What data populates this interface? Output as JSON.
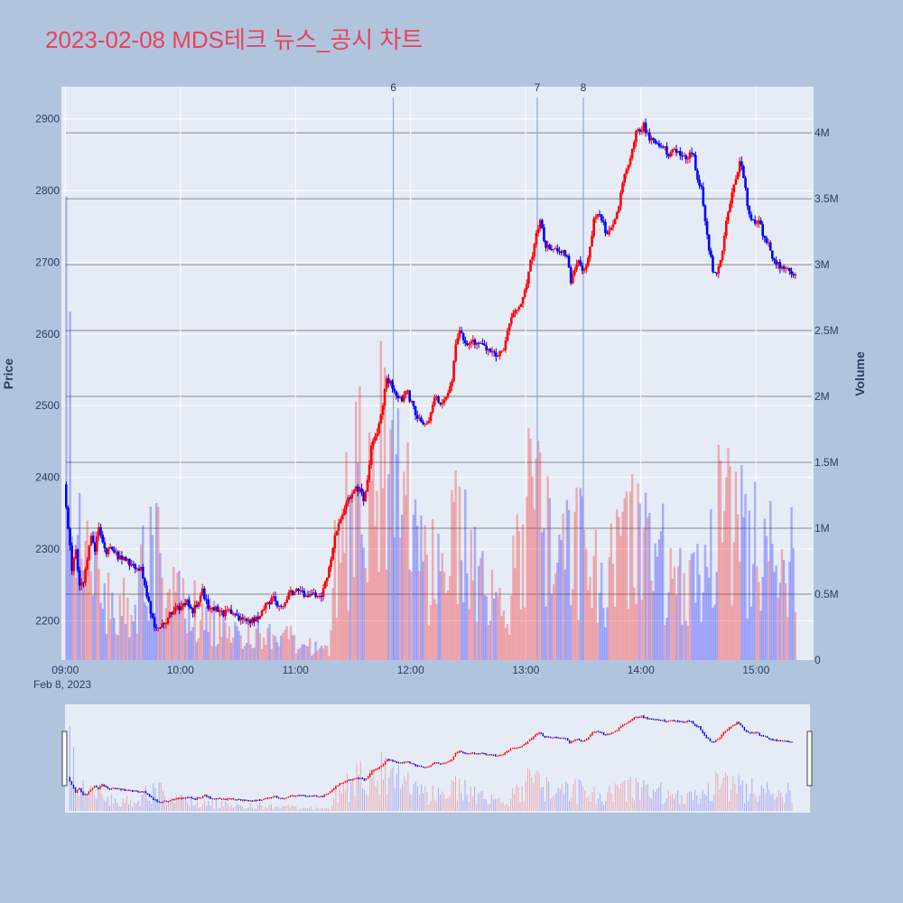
{
  "title": "2023-02-08 MDS테크 뉴스_공시 차트",
  "colors": {
    "up": "#ff0000",
    "down": "#0000ff",
    "background": "#b0c4de",
    "plot_bg": "#e5ecf6",
    "title": "#e8435a"
  },
  "chart_data": {
    "type": "candlestick",
    "title": "2023-02-08 MDS테크 뉴스_공시 차트",
    "xlabel": "",
    "ylabel": "Price",
    "y2label": "Volume",
    "date_label": "Feb 8, 2023",
    "x_ticks": [
      "09:00",
      "10:00",
      "11:00",
      "12:00",
      "13:00",
      "14:00",
      "15:00"
    ],
    "y_ticks": [
      2200,
      2300,
      2400,
      2500,
      2600,
      2700,
      2800,
      2900
    ],
    "y2_ticks": [
      {
        "value": 0,
        "label": "0"
      },
      {
        "value": 500000,
        "label": "0.5M"
      },
      {
        "value": 1000000,
        "label": "1M"
      },
      {
        "value": 1500000,
        "label": "1.5M"
      },
      {
        "value": 2000000,
        "label": "2M"
      },
      {
        "value": 2500000,
        "label": "2.5M"
      },
      {
        "value": 3000000,
        "label": "3M"
      },
      {
        "value": 3500000,
        "label": "3.5M"
      },
      {
        "value": 4000000,
        "label": "4M"
      }
    ],
    "ylim": [
      2145,
      2945
    ],
    "y2lim": [
      0,
      4350000
    ],
    "x_range": [
      "08:58",
      "15:30"
    ],
    "news_markers": [
      {
        "label": "6",
        "time": "11:51"
      },
      {
        "label": "7",
        "time": "13:06"
      },
      {
        "label": "8",
        "time": "13:30"
      }
    ],
    "price_path": [
      [
        "09:00",
        2390
      ],
      [
        "09:02",
        2330
      ],
      [
        "09:04",
        2270
      ],
      [
        "09:06",
        2295
      ],
      [
        "09:08",
        2250
      ],
      [
        "09:10",
        2255
      ],
      [
        "09:12",
        2290
      ],
      [
        "09:14",
        2320
      ],
      [
        "09:16",
        2300
      ],
      [
        "09:18",
        2330
      ],
      [
        "09:20",
        2310
      ],
      [
        "09:22",
        2295
      ],
      [
        "09:25",
        2300
      ],
      [
        "09:28",
        2290
      ],
      [
        "09:31",
        2290
      ],
      [
        "09:34",
        2280
      ],
      [
        "09:37",
        2275
      ],
      [
        "09:40",
        2270
      ],
      [
        "09:42",
        2250
      ],
      [
        "09:44",
        2225
      ],
      [
        "09:46",
        2200
      ],
      [
        "09:48",
        2190
      ],
      [
        "09:50",
        2195
      ],
      [
        "09:53",
        2200
      ],
      [
        "09:55",
        2210
      ],
      [
        "09:58",
        2215
      ],
      [
        "10:01",
        2220
      ],
      [
        "10:04",
        2225
      ],
      [
        "10:07",
        2215
      ],
      [
        "10:09",
        2220
      ],
      [
        "10:11",
        2240
      ],
      [
        "10:12",
        2245
      ],
      [
        "10:14",
        2225
      ],
      [
        "10:17",
        2215
      ],
      [
        "10:20",
        2215
      ],
      [
        "10:23",
        2210
      ],
      [
        "10:26",
        2212
      ],
      [
        "10:29",
        2205
      ],
      [
        "10:32",
        2203
      ],
      [
        "10:35",
        2200
      ],
      [
        "10:38",
        2200
      ],
      [
        "10:40",
        2205
      ],
      [
        "10:42",
        2210
      ],
      [
        "10:44",
        2220
      ],
      [
        "10:46",
        2225
      ],
      [
        "10:49",
        2230
      ],
      [
        "10:52",
        2222
      ],
      [
        "10:55",
        2225
      ],
      [
        "10:57",
        2235
      ],
      [
        "10:59",
        2240
      ],
      [
        "11:02",
        2240
      ],
      [
        "11:05",
        2235
      ],
      [
        "11:08",
        2240
      ],
      [
        "11:11",
        2235
      ],
      [
        "11:14",
        2235
      ],
      [
        "11:16",
        2250
      ],
      [
        "11:18",
        2270
      ],
      [
        "11:20",
        2300
      ],
      [
        "11:22",
        2330
      ],
      [
        "11:25",
        2350
      ],
      [
        "11:28",
        2370
      ],
      [
        "11:30",
        2375
      ],
      [
        "11:32",
        2390
      ],
      [
        "11:34",
        2380
      ],
      [
        "11:36",
        2370
      ],
      [
        "11:38",
        2400
      ],
      [
        "11:40",
        2440
      ],
      [
        "11:42",
        2460
      ],
      [
        "11:44",
        2470
      ],
      [
        "11:46",
        2500
      ],
      [
        "11:48",
        2540
      ],
      [
        "11:50",
        2530
      ],
      [
        "11:52",
        2520
      ],
      [
        "11:54",
        2510
      ],
      [
        "11:56",
        2510
      ],
      [
        "11:58",
        2525
      ],
      [
        "12:00",
        2510
      ],
      [
        "12:02",
        2495
      ],
      [
        "12:04",
        2480
      ],
      [
        "12:06",
        2480
      ],
      [
        "12:08",
        2475
      ],
      [
        "12:10",
        2480
      ],
      [
        "12:12",
        2505
      ],
      [
        "12:14",
        2515
      ],
      [
        "12:16",
        2500
      ],
      [
        "12:18",
        2510
      ],
      [
        "12:20",
        2520
      ],
      [
        "12:22",
        2530
      ],
      [
        "12:24",
        2590
      ],
      [
        "12:26",
        2600
      ],
      [
        "12:28",
        2595
      ],
      [
        "12:30",
        2585
      ],
      [
        "12:32",
        2590
      ],
      [
        "12:34",
        2590
      ],
      [
        "12:36",
        2585
      ],
      [
        "12:38",
        2585
      ],
      [
        "12:40",
        2580
      ],
      [
        "12:42",
        2575
      ],
      [
        "12:44",
        2570
      ],
      [
        "12:46",
        2570
      ],
      [
        "12:48",
        2575
      ],
      [
        "12:50",
        2590
      ],
      [
        "12:52",
        2610
      ],
      [
        "12:54",
        2630
      ],
      [
        "12:56",
        2630
      ],
      [
        "12:58",
        2640
      ],
      [
        "13:00",
        2660
      ],
      [
        "13:02",
        2690
      ],
      [
        "13:04",
        2710
      ],
      [
        "13:06",
        2740
      ],
      [
        "13:08",
        2760
      ],
      [
        "13:10",
        2730
      ],
      [
        "13:12",
        2720
      ],
      [
        "13:14",
        2720
      ],
      [
        "13:16",
        2715
      ],
      [
        "13:18",
        2710
      ],
      [
        "13:20",
        2715
      ],
      [
        "13:22",
        2710
      ],
      [
        "13:24",
        2670
      ],
      [
        "13:26",
        2690
      ],
      [
        "13:28",
        2700
      ],
      [
        "13:30",
        2690
      ],
      [
        "13:32",
        2690
      ],
      [
        "13:34",
        2720
      ],
      [
        "13:36",
        2760
      ],
      [
        "13:38",
        2765
      ],
      [
        "13:40",
        2760
      ],
      [
        "13:42",
        2745
      ],
      [
        "13:44",
        2740
      ],
      [
        "13:46",
        2755
      ],
      [
        "13:48",
        2770
      ],
      [
        "13:50",
        2795
      ],
      [
        "13:52",
        2820
      ],
      [
        "13:54",
        2840
      ],
      [
        "13:56",
        2860
      ],
      [
        "13:58",
        2880
      ],
      [
        "14:00",
        2885
      ],
      [
        "14:02",
        2890
      ],
      [
        "14:04",
        2880
      ],
      [
        "14:06",
        2870
      ],
      [
        "14:08",
        2865
      ],
      [
        "14:10",
        2860
      ],
      [
        "14:12",
        2860
      ],
      [
        "14:14",
        2855
      ],
      [
        "14:16",
        2850
      ],
      [
        "14:18",
        2855
      ],
      [
        "14:20",
        2860
      ],
      [
        "14:22",
        2845
      ],
      [
        "14:24",
        2845
      ],
      [
        "14:26",
        2850
      ],
      [
        "14:28",
        2845
      ],
      [
        "14:30",
        2815
      ],
      [
        "14:32",
        2800
      ],
      [
        "14:34",
        2760
      ],
      [
        "14:36",
        2720
      ],
      [
        "14:38",
        2690
      ],
      [
        "14:40",
        2680
      ],
      [
        "14:42",
        2700
      ],
      [
        "14:44",
        2740
      ],
      [
        "14:46",
        2770
      ],
      [
        "14:48",
        2800
      ],
      [
        "14:50",
        2820
      ],
      [
        "14:52",
        2840
      ],
      [
        "14:54",
        2820
      ],
      [
        "14:56",
        2780
      ],
      [
        "14:58",
        2760
      ],
      [
        "15:00",
        2750
      ],
      [
        "15:02",
        2760
      ],
      [
        "15:04",
        2740
      ],
      [
        "15:06",
        2730
      ],
      [
        "15:08",
        2720
      ],
      [
        "15:10",
        2700
      ],
      [
        "15:12",
        2700
      ],
      [
        "15:14",
        2690
      ],
      [
        "15:16",
        2690
      ],
      [
        "15:18",
        2685
      ],
      [
        "15:20",
        2680
      ]
    ],
    "volume_profile": [
      [
        "09:00",
        2700000
      ],
      [
        "09:05",
        1100000
      ],
      [
        "09:12",
        800000
      ],
      [
        "09:20",
        550000
      ],
      [
        "09:35",
        420000
      ],
      [
        "09:44",
        1000000
      ],
      [
        "09:52",
        700000
      ],
      [
        "10:10",
        380000
      ],
      [
        "10:30",
        260000
      ],
      [
        "10:55",
        200000
      ],
      [
        "11:10",
        100000
      ],
      [
        "11:17",
        80000
      ],
      [
        "11:20",
        800000
      ],
      [
        "11:30",
        1400000
      ],
      [
        "11:40",
        1700000
      ],
      [
        "11:48",
        1900000
      ],
      [
        "11:56",
        1300000
      ],
      [
        "12:05",
        800000
      ],
      [
        "12:15",
        750000
      ],
      [
        "12:24",
        1100000
      ],
      [
        "12:35",
        650000
      ],
      [
        "12:50",
        500000
      ],
      [
        "12:58",
        1200000
      ],
      [
        "13:06",
        1500000
      ],
      [
        "13:15",
        800000
      ],
      [
        "13:28",
        1000000
      ],
      [
        "13:40",
        700000
      ],
      [
        "13:52",
        1100000
      ],
      [
        "14:00",
        1000000
      ],
      [
        "14:15",
        800000
      ],
      [
        "14:28",
        600000
      ],
      [
        "14:36",
        1300000
      ],
      [
        "14:48",
        1100000
      ],
      [
        "15:00",
        1000000
      ],
      [
        "15:12",
        900000
      ],
      [
        "15:20",
        950000
      ]
    ]
  }
}
